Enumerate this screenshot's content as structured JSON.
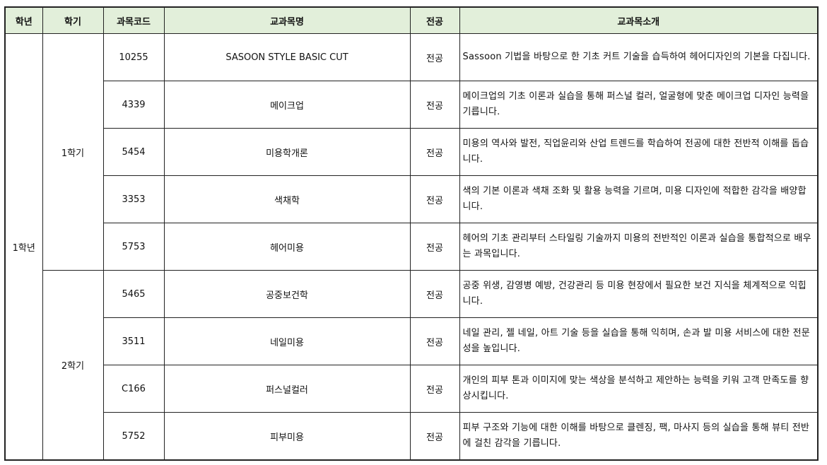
{
  "headers": [
    "학년",
    "학기",
    "과목코드",
    "교과목명",
    "전공",
    "교과목소개"
  ],
  "year": "1학년",
  "semesters": [
    {
      "label": "1학기",
      "courses": [
        {
          "code": "10255",
          "name": "SASOON STYLE BASIC CUT",
          "type": "전공",
          "desc": "Sassoon 기법을 바탕으로 한 기초 커트 기술을 습득하여 헤어디자인의 기본을 다집니다."
        },
        {
          "code": "4339",
          "name": "메이크업",
          "type": "전공",
          "desc": "메이크업의 기초 이론과 실습을 통해 퍼스널 컬러, 얼굴형에 맞춘 메이크업 디자인 능력을 기릅니다."
        },
        {
          "code": "5454",
          "name": "미용학개론",
          "type": "전공",
          "desc": "미용의 역사와 발전, 직업윤리와 산업 트렌드를 학습하여 전공에 대한 전반적 이해를 돕습니다."
        },
        {
          "code": "3353",
          "name": "색채학",
          "type": "전공",
          "desc": "색의 기본 이론과 색채 조화 및 활용 능력을 기르며, 미용 디자인에 적합한 감각을 배양합니다."
        },
        {
          "code": "5753",
          "name": "헤어미용",
          "type": "전공",
          "desc": "헤어의 기초 관리부터 스타일링 기술까지 미용의 전반적인 이론과 실습을 통합적으로 배우는 과목입니다."
        }
      ]
    },
    {
      "label": "2학기",
      "courses": [
        {
          "code": "5465",
          "name": "공중보건학",
          "type": "전공",
          "desc": "공중 위생, 감영병 예방, 건강관리 등 미용 현장에서 필요한 보건 지식을 체계적으로 익힙니다."
        },
        {
          "code": "3511",
          "name": "네일미용",
          "type": "전공",
          "desc": "네일 관리, 젤 네일, 아트 기술 등을 실습을 통해 익히며, 손과 발 미용 서비스에 대한 전문성을 높입니다."
        },
        {
          "code": "C166",
          "name": "퍼스널컬러",
          "type": "전공",
          "desc": "개인의 피부 톤과 이미지에 맞는 색상을 분석하고 제안하는 능력을 키워 고객 만족도를 향상시킵니다."
        },
        {
          "code": "5752",
          "name": "피부미용",
          "type": "전공",
          "desc": "피부 구조와 기능에 대한 이해를 바탕으로 클렌징, 팩, 마사지 등의 실습을 통해 뷰티 전반에 걸친 감각을 기릅니다."
        }
      ]
    }
  ]
}
